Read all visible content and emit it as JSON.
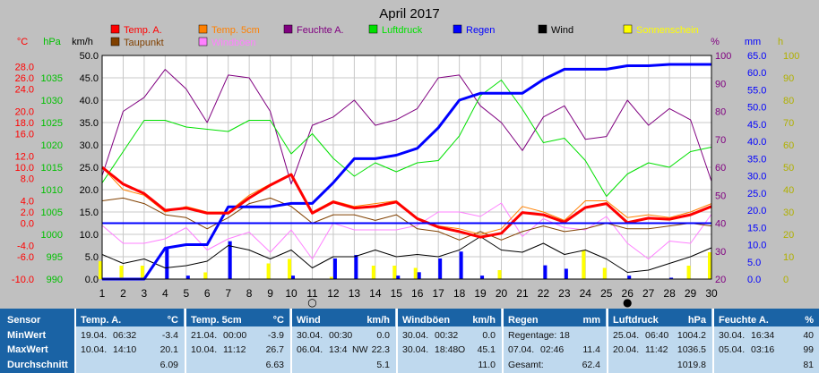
{
  "chart_data": {
    "type": "line",
    "title": "April 2017",
    "x": [
      1,
      2,
      3,
      4,
      5,
      6,
      7,
      8,
      9,
      10,
      11,
      12,
      13,
      14,
      15,
      16,
      17,
      18,
      19,
      20,
      21,
      22,
      23,
      24,
      25,
      26,
      27,
      28,
      29,
      30
    ],
    "axes": {
      "degc": {
        "label": "°C",
        "ticks": [
          "28.0",
          "26.0",
          "24.0",
          "20.0",
          "18.0",
          "16.0",
          "12.0",
          "10.0",
          "8.0",
          "4.0",
          "2.0",
          "0.0",
          "-4.0",
          "-6.0",
          "-10.0"
        ],
        "range": [
          -10,
          30
        ],
        "color": "#ff0000"
      },
      "hpa": {
        "label": "hPa",
        "ticks": [
          "1035",
          "1030",
          "1025",
          "1020",
          "1015",
          "1010",
          "1005",
          "1000",
          "995",
          "990"
        ],
        "range": [
          990,
          1040
        ],
        "color": "#00c000"
      },
      "kmh": {
        "label": "km/h",
        "ticks": [
          "50.0",
          "45.0",
          "40.0",
          "35.0",
          "30.0",
          "25.0",
          "20.0",
          "15.0",
          "10.0",
          "5.0",
          "0.0"
        ],
        "range": [
          0,
          50
        ]
      },
      "pct": {
        "label": "%",
        "ticks": [
          "100",
          "90",
          "80",
          "70",
          "60",
          "50",
          "40",
          "30",
          "20"
        ],
        "range": [
          20,
          100
        ],
        "color": "#800080"
      },
      "mm": {
        "label": "mm",
        "ticks": [
          "65.0",
          "60.0",
          "55.0",
          "50.0",
          "45.0",
          "40.0",
          "35.0",
          "30.0",
          "25.0",
          "20.0",
          "15.0",
          "10.0",
          "5.0",
          "0.0"
        ],
        "range": [
          0,
          65
        ],
        "color": "#0000ff"
      },
      "h": {
        "label": "h",
        "ticks": [
          "100",
          "90",
          "80",
          "70",
          "60",
          "50",
          "40",
          "30",
          "20",
          "10",
          "0"
        ],
        "range": [
          0,
          100
        ],
        "color": "#e0e000"
      }
    },
    "legend": [
      {
        "name": "Temp. A.",
        "color": "#ff0000"
      },
      {
        "name": "Temp. 5cm",
        "color": "#ff8000"
      },
      {
        "name": "Feuchte A.",
        "color": "#800080"
      },
      {
        "name": "Luftdruck",
        "color": "#00e000"
      },
      {
        "name": "Regen",
        "color": "#0000ff"
      },
      {
        "name": "Wind",
        "color": "#000000"
      },
      {
        "name": "Sonnenschein",
        "color": "#ffff00"
      },
      {
        "name": "Taupunkt",
        "color": "#804000"
      },
      {
        "name": "Windböen",
        "color": "#ff80ff"
      }
    ],
    "series": [
      {
        "name": "Temp. A.",
        "unit": "°C",
        "color": "#ff0000",
        "values": [
          10.0,
          7.0,
          5.3,
          2.3,
          2.7,
          1.8,
          1.8,
          4.5,
          6.8,
          8.7,
          1.8,
          3.8,
          2.7,
          3.0,
          3.8,
          0.8,
          -0.7,
          -1.5,
          -2.5,
          -1.8,
          1.9,
          1.5,
          0.2,
          2.8,
          3.5,
          0.1,
          0.9,
          0.7,
          1.5,
          3.0
        ]
      },
      {
        "name": "Temp. 5cm",
        "unit": "°C",
        "color": "#ff8000",
        "values": [
          10.0,
          6.0,
          5.0,
          2.0,
          3.0,
          2.0,
          2.0,
          5.0,
          7.0,
          8.5,
          2.0,
          4.0,
          3.0,
          3.5,
          4.0,
          1.0,
          -0.5,
          -1.0,
          -2.0,
          -1.0,
          3.0,
          2.0,
          0.5,
          4.0,
          4.0,
          1.0,
          1.5,
          1.0,
          2.0,
          3.5
        ]
      },
      {
        "name": "Taupunkt",
        "unit": "°C",
        "color": "#804000",
        "values": [
          4.0,
          4.5,
          3.5,
          1.5,
          1.0,
          -1.0,
          1.0,
          3.5,
          4.5,
          3.0,
          0.0,
          1.5,
          1.5,
          0.5,
          1.5,
          -1.0,
          -1.5,
          -3.0,
          -1.5,
          -3.0,
          -1.5,
          -0.5,
          -1.5,
          -1.0,
          0.0,
          -1.0,
          -1.0,
          -0.5,
          0.0,
          -0.5
        ]
      },
      {
        "name": "Feuchte A.",
        "unit": "%",
        "color": "#800080",
        "values": [
          57,
          80,
          85,
          95,
          88,
          76,
          93,
          92,
          80,
          54,
          75,
          78,
          84,
          75,
          77,
          81,
          92,
          93,
          82,
          76,
          66,
          78,
          82,
          70,
          71,
          84,
          75,
          81,
          77,
          55
        ]
      },
      {
        "name": "Luftdruck",
        "unit": "hPa",
        "color": "#00e000",
        "values": [
          1011.5,
          1018.5,
          1025.5,
          1025.5,
          1024.0,
          1023.5,
          1023.0,
          1025.5,
          1025.5,
          1018.0,
          1022.5,
          1017.0,
          1013.0,
          1016.0,
          1014.0,
          1016.0,
          1016.5,
          1022.0,
          1031.0,
          1034.5,
          1028.0,
          1020.5,
          1021.5,
          1016.5,
          1008.5,
          1013.5,
          1016.0,
          1015.0,
          1018.5,
          1019.5
        ]
      },
      {
        "name": "Regen",
        "unit": "mm",
        "type": "cumulative",
        "color": "#0000ff",
        "values": [
          0.0,
          0.0,
          0.0,
          9.0,
          10.0,
          10.0,
          21.0,
          21.0,
          21.0,
          22.0,
          22.0,
          28.0,
          35.0,
          35.0,
          36.0,
          38.0,
          44.0,
          52.0,
          54.0,
          54.0,
          54.0,
          58.0,
          61.0,
          61.0,
          61.0,
          62.0,
          62.0,
          62.4,
          62.4,
          62.4
        ]
      },
      {
        "name": "Wind",
        "unit": "km/h",
        "color": "#000000",
        "values": [
          5.5,
          3.5,
          4.5,
          2.5,
          3.0,
          4.0,
          7.5,
          6.5,
          4.5,
          6.5,
          2.5,
          5.0,
          5.0,
          6.5,
          5.0,
          5.5,
          5.0,
          6.5,
          9.5,
          6.5,
          6.0,
          8.0,
          5.5,
          6.5,
          4.5,
          1.5,
          2.0,
          3.5,
          5.0,
          7.0
        ]
      },
      {
        "name": "Windböen",
        "unit": "km/h",
        "color": "#ff80ff",
        "values": [
          12.0,
          8.0,
          8.0,
          9.0,
          11.5,
          6.5,
          9.0,
          10.5,
          6.0,
          11.0,
          4.5,
          12.5,
          11.0,
          11.0,
          11.0,
          12.0,
          15.0,
          15.0,
          14.0,
          17.0,
          9.5,
          13.5,
          11.5,
          11.0,
          14.0,
          8.0,
          4.5,
          8.5,
          8.0,
          14.5
        ]
      },
      {
        "name": "Sonnenschein",
        "unit": "h",
        "type": "bar",
        "color": "#ffff00",
        "values": [
          8,
          6,
          6,
          0,
          0,
          3,
          0,
          0,
          7,
          9,
          0,
          1,
          0,
          6,
          6,
          5,
          0,
          0,
          0,
          4,
          0,
          0,
          0,
          13,
          5,
          0,
          0,
          0,
          6,
          12
        ]
      },
      {
        "name": "Regen (täglich)",
        "unit": "mm",
        "type": "bar",
        "color": "#0000ff",
        "values": [
          0,
          0,
          0,
          9,
          1,
          0,
          11,
          0,
          0,
          1,
          0,
          6,
          7,
          0,
          1,
          2,
          6,
          8,
          1,
          0,
          0,
          4,
          3,
          0,
          0,
          1,
          0,
          0.4,
          0,
          0
        ]
      }
    ],
    "markers": [
      {
        "day": 11,
        "symbol": "○"
      },
      {
        "day": 26,
        "symbol": "●"
      }
    ],
    "grid": true,
    "legend_position": "top"
  },
  "table": {
    "headers": {
      "sensor": "Sensor",
      "min": "MinWert",
      "max": "MaxWert",
      "avg": "Durchschnitt"
    },
    "columns": [
      {
        "title": "Temp. A.",
        "unit": "°C",
        "rows": [
          [
            "19.04.",
            "06:32",
            "",
            "-3.4"
          ],
          [
            "10.04.",
            "14:10",
            "",
            "20.1"
          ],
          [
            "",
            "",
            "",
            "6.09"
          ]
        ]
      },
      {
        "title": "Temp. 5cm",
        "unit": "°C",
        "rows": [
          [
            "21.04.",
            "00:00",
            "",
            "-3.9"
          ],
          [
            "10.04.",
            "11:12",
            "",
            "26.7"
          ],
          [
            "",
            "",
            "",
            "6.63"
          ]
        ]
      },
      {
        "title": "Wind",
        "unit": "km/h",
        "rows": [
          [
            "30.04.",
            "00:30",
            "",
            "0.0"
          ],
          [
            "06.04.",
            "13:4",
            "NW",
            "22.3"
          ],
          [
            "",
            "",
            "",
            "5.1"
          ]
        ]
      },
      {
        "title": "Windböen",
        "unit": "km/h",
        "rows": [
          [
            "30.04.",
            "00:32",
            "",
            "0.0"
          ],
          [
            "30.04.",
            "18:48",
            "O",
            "45.1"
          ],
          [
            "",
            "",
            "",
            "11.0"
          ]
        ]
      },
      {
        "title": "Regen",
        "unit": "mm",
        "rows": [
          [
            "Regentage: 18",
            "",
            "",
            ""
          ],
          [
            "07.04.",
            "02:46",
            "",
            "11.4"
          ],
          [
            "Gesamt:",
            "",
            "",
            "62.4"
          ]
        ]
      },
      {
        "title": "Luftdruck",
        "unit": "hPa",
        "rows": [
          [
            "25.04.",
            "06:40",
            "",
            "1004.2"
          ],
          [
            "20.04.",
            "11:42",
            "",
            "1036.5"
          ],
          [
            "",
            "",
            "",
            "1019.8"
          ]
        ]
      },
      {
        "title": "Feuchte A.",
        "unit": "%",
        "rows": [
          [
            "30.04.",
            "16:34",
            "",
            "40"
          ],
          [
            "05.04.",
            "03:16",
            "",
            "99"
          ],
          [
            "",
            "",
            "",
            "81"
          ]
        ]
      }
    ]
  }
}
